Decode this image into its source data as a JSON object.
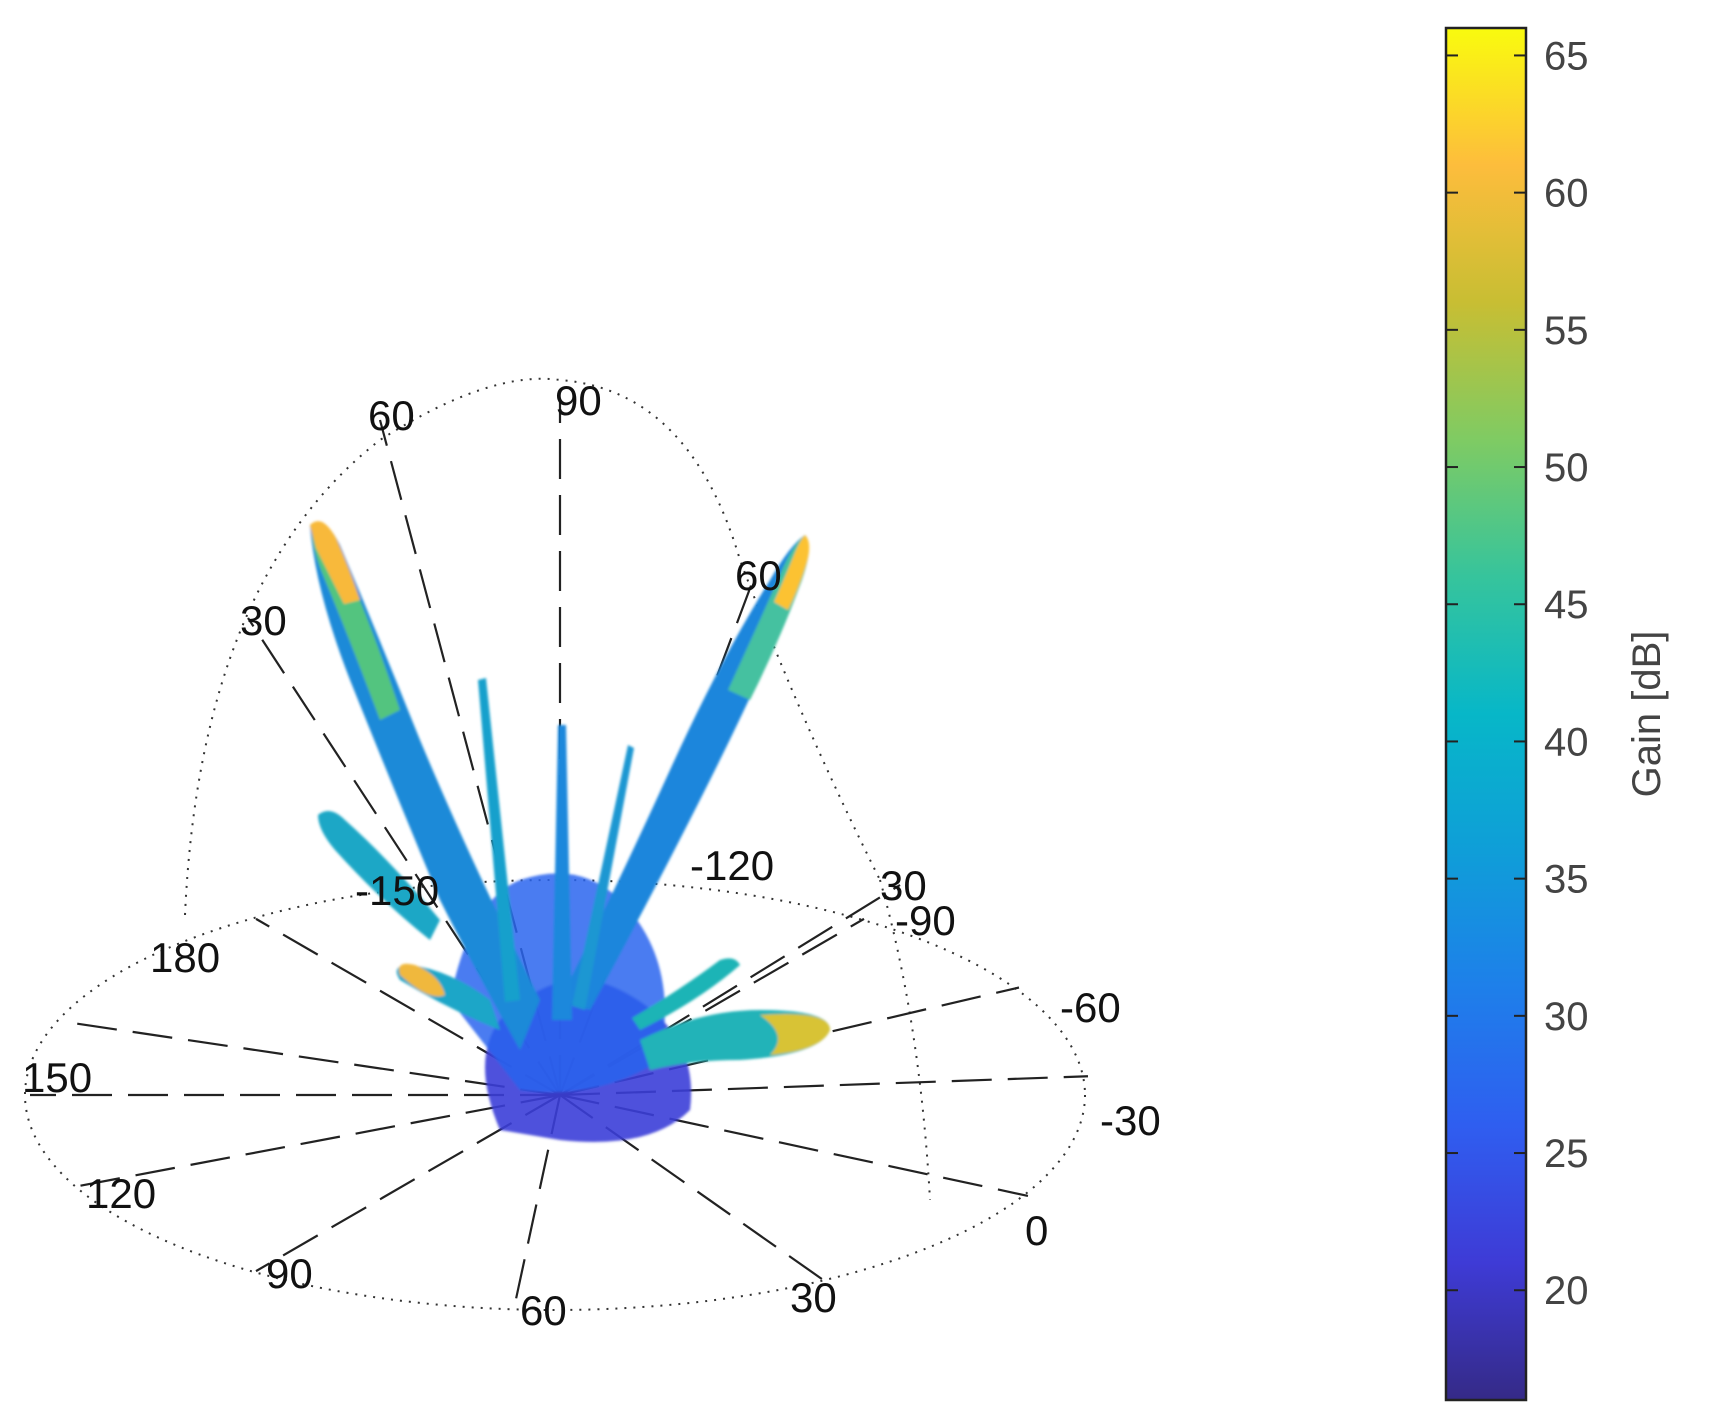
{
  "chart_data": {
    "type": "other",
    "title": "",
    "colorbar": {
      "label": "Gain [dB]",
      "min": 16,
      "max": 66,
      "ticks": [
        20,
        25,
        30,
        35,
        40,
        45,
        50,
        55,
        60,
        65
      ],
      "colormap": "parula"
    },
    "azimuth_labels": [
      "180",
      "150",
      "120",
      "90",
      "60",
      "30",
      "0",
      "-30",
      "-60",
      "-90",
      "-120",
      "-150"
    ],
    "elevation_labels": [
      "30",
      "60",
      "90",
      "60",
      "30"
    ],
    "lobes": [
      {
        "azimuth_deg": 150,
        "elevation_deg": 62,
        "peak_gain_db": 60
      },
      {
        "azimuth_deg": -40,
        "elevation_deg": 60,
        "peak_gain_db": 60
      },
      {
        "azimuth_deg": 175,
        "elevation_deg": 8,
        "peak_gain_db": 58
      },
      {
        "azimuth_deg": -70,
        "elevation_deg": 8,
        "peak_gain_db": 50
      },
      {
        "azimuth_deg": 165,
        "elevation_deg": 30,
        "peak_gain_db": 42
      },
      {
        "azimuth_deg": 100,
        "elevation_deg": 75,
        "peak_gain_db": 40
      },
      {
        "azimuth_deg": 0,
        "elevation_deg": 80,
        "peak_gain_db": 36
      },
      {
        "azimuth_deg": -20,
        "elevation_deg": 70,
        "peak_gain_db": 35
      }
    ]
  }
}
